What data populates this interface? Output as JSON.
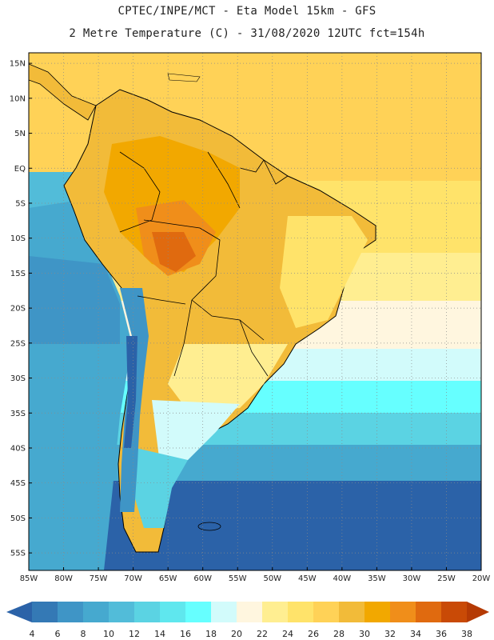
{
  "header": {
    "line1": "CPTEC/INPE/MCT -  Eta Model 15km - GFS",
    "line2": "2 Metre Temperature (C) - 31/08/2020 12UTC fct=154h"
  },
  "map": {
    "lon_range": [
      -85,
      -20
    ],
    "lat_range": [
      -57.5,
      16.5
    ],
    "lat_ticks": [
      "15N",
      "10N",
      "5N",
      "EQ",
      "5S",
      "10S",
      "15S",
      "20S",
      "25S",
      "30S",
      "35S",
      "40S",
      "45S",
      "50S",
      "55S"
    ],
    "lat_values": [
      15,
      10,
      5,
      0,
      -5,
      -10,
      -15,
      -20,
      -25,
      -30,
      -35,
      -40,
      -45,
      -50,
      -55
    ],
    "lon_ticks": [
      "85W",
      "80W",
      "75W",
      "70W",
      "65W",
      "60W",
      "55W",
      "50W",
      "45W",
      "40W",
      "35W",
      "30W",
      "25W",
      "20W"
    ],
    "lon_values": [
      -85,
      -80,
      -75,
      -70,
      -65,
      -60,
      -55,
      -50,
      -45,
      -40,
      -35,
      -30,
      -25,
      -20
    ],
    "grid": true,
    "frame_color": "#000000",
    "gridline_color": "#8a8a8a"
  },
  "colorbar": {
    "labels": [
      "4",
      "6",
      "8",
      "10",
      "12",
      "14",
      "16",
      "18",
      "20",
      "22",
      "24",
      "26",
      "28",
      "30",
      "32",
      "34",
      "36",
      "38"
    ],
    "bin_colors": [
      "#2b62a8",
      "#3479b5",
      "#3f95c6",
      "#46a9cf",
      "#52bcd9",
      "#5bd3e3",
      "#5fe7ee",
      "#66ffff",
      "#d2fbfb",
      "#fff6df",
      "#ffee91",
      "#ffe36a",
      "#ffd257",
      "#f2bb39",
      "#f2a800",
      "#f08e1a",
      "#e06a0f",
      "#c94a06",
      "#b53a04"
    ],
    "extend": "both"
  }
}
